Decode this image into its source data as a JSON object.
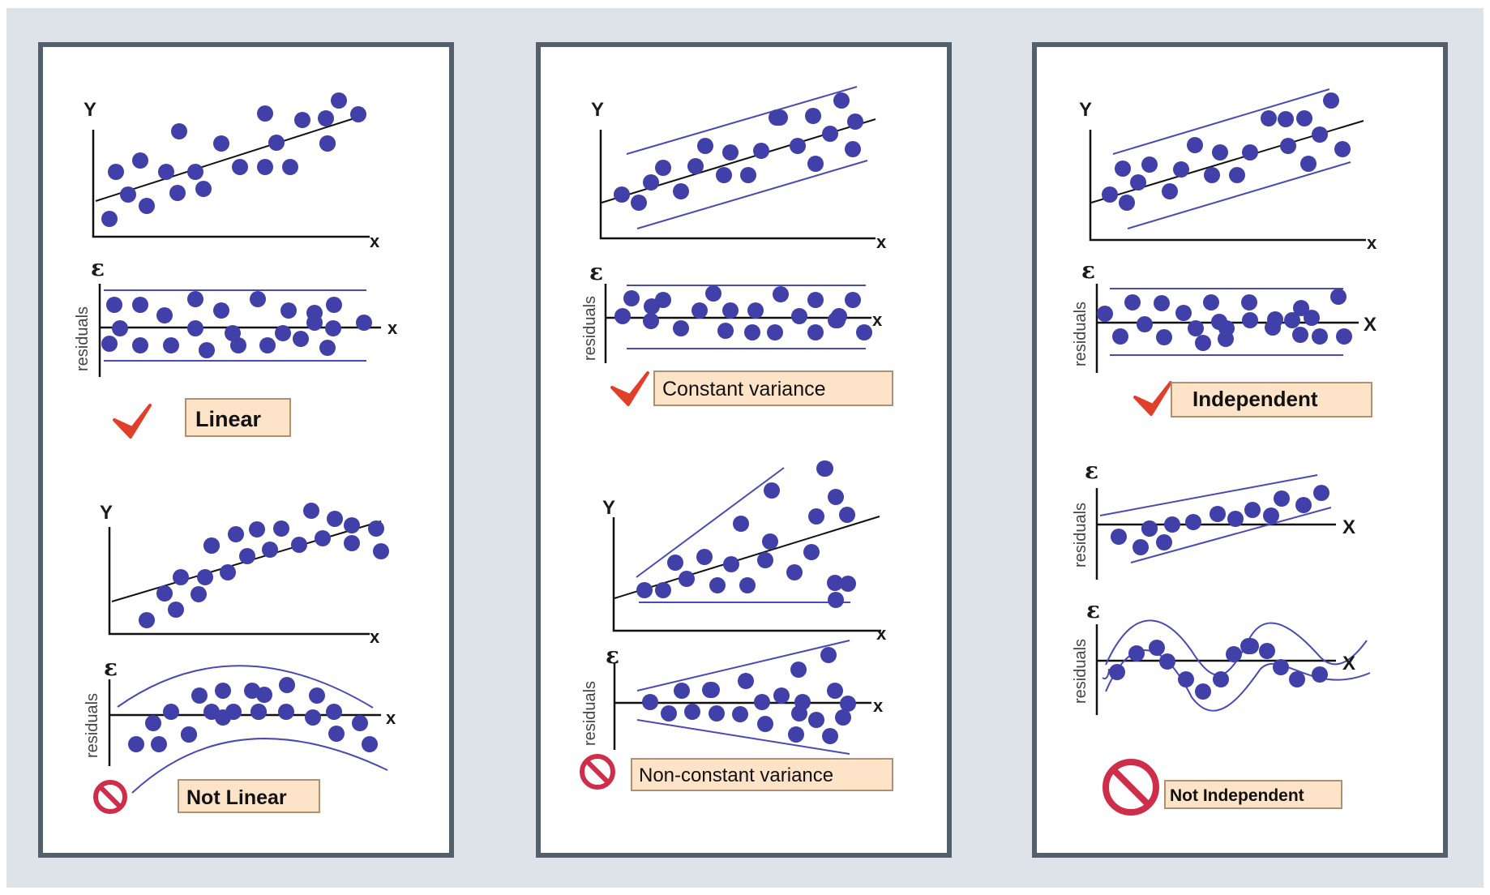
{
  "colors": {
    "background": "#dde3e8",
    "panel_border": "#53606b",
    "dot": "#4040a8",
    "band": "#4a4ab5",
    "line": "#111111",
    "label_fill": "#fde3c8",
    "label_border": "#b09070",
    "check": "#e0402a",
    "prohibited": "#cf2e4a"
  },
  "axes": {
    "y": "Y",
    "x": "x",
    "x_upper": "X",
    "epsilon": "ε",
    "residuals": "residuals"
  },
  "panels": [
    {
      "id": "linearity",
      "good": {
        "label": "Linear",
        "mark": "check-icon"
      },
      "bad": {
        "label": "Not Linear",
        "mark": "prohibited-icon"
      }
    },
    {
      "id": "variance",
      "good": {
        "label": "Constant variance",
        "mark": "check-icon"
      },
      "bad": {
        "label": "Non-constant variance",
        "mark": "prohibited-icon"
      }
    },
    {
      "id": "independence",
      "good": {
        "label": "Independent",
        "mark": "check-icon"
      },
      "bad": {
        "label": "Not Independent",
        "mark": "prohibited-icon"
      }
    }
  ]
}
